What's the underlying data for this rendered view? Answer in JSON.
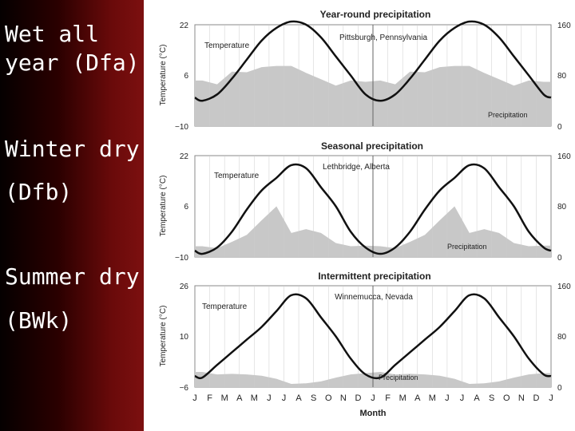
{
  "slide": {
    "labels": [
      {
        "line1": "Wet all",
        "line2": "year (Dfa)"
      },
      {
        "line1": "Winter dry",
        "line2": "(Dfb)"
      },
      {
        "line1": "Summer dry",
        "line2": "(BWk)"
      }
    ]
  },
  "common": {
    "y_left_label": "Temperature (°C)",
    "x_label": "Month",
    "month_ticks": [
      "J",
      "F",
      "M",
      "A",
      "M",
      "J",
      "J",
      "A",
      "S",
      "O",
      "N",
      "D",
      "J",
      "F",
      "M",
      "A",
      "M",
      "J",
      "J",
      "A",
      "S",
      "O",
      "N",
      "D",
      "J"
    ]
  },
  "chart_data": [
    {
      "type": "line",
      "title": "Year-round precipitation",
      "subtitle": "Pittsburgh, Pennsylvania",
      "temp_label": "Temperature",
      "precip_label": "Precipitation",
      "ylabel": "Temperature (°C)",
      "temp_range": [
        -10,
        22
      ],
      "temp_ticks": [
        "22",
        "6",
        "−10"
      ],
      "precip_range": [
        0,
        160
      ],
      "precip_ticks": [
        "160",
        "80",
        "0"
      ],
      "temperature": [
        -2,
        0,
        5,
        11,
        17,
        21,
        23,
        22,
        18,
        12,
        6,
        0
      ],
      "precipitation": [
        72,
        66,
        86,
        85,
        93,
        95,
        95,
        84,
        74,
        64,
        72,
        70
      ]
    },
    {
      "type": "line",
      "title": "Seasonal precipitation",
      "subtitle": "Lethbridge, Alberta",
      "temp_label": "Temperature",
      "precip_label": "Precipitation",
      "ylabel": "Temperature (°C)",
      "temp_range": [
        -10,
        22
      ],
      "temp_ticks": [
        "22",
        "6",
        "−10"
      ],
      "precip_range": [
        0,
        160
      ],
      "precip_ticks": [
        "160",
        "80",
        "0"
      ],
      "temperature": [
        -9,
        -7,
        -2,
        5,
        11,
        15,
        19,
        18,
        12,
        6,
        -2,
        -7
      ],
      "precipitation": [
        17,
        14,
        24,
        35,
        58,
        80,
        38,
        44,
        38,
        22,
        17,
        18
      ]
    },
    {
      "type": "line",
      "title": "Intermittent precipitation",
      "subtitle": "Winnemucca, Nevada",
      "temp_label": "Temperature",
      "precip_label": "Precipitation",
      "ylabel": "Temperature (°C)",
      "temp_range": [
        -6,
        26
      ],
      "temp_ticks": [
        "26",
        "10",
        "−6"
      ],
      "precip_range": [
        0,
        160
      ],
      "precip_ticks": [
        "160",
        "80",
        "0"
      ],
      "temperature": [
        -3,
        1,
        5,
        9,
        13,
        18,
        23,
        22,
        16,
        10,
        3,
        -2
      ],
      "precipitation": [
        24,
        20,
        21,
        20,
        18,
        13,
        5,
        6,
        9,
        15,
        20,
        22
      ]
    }
  ]
}
